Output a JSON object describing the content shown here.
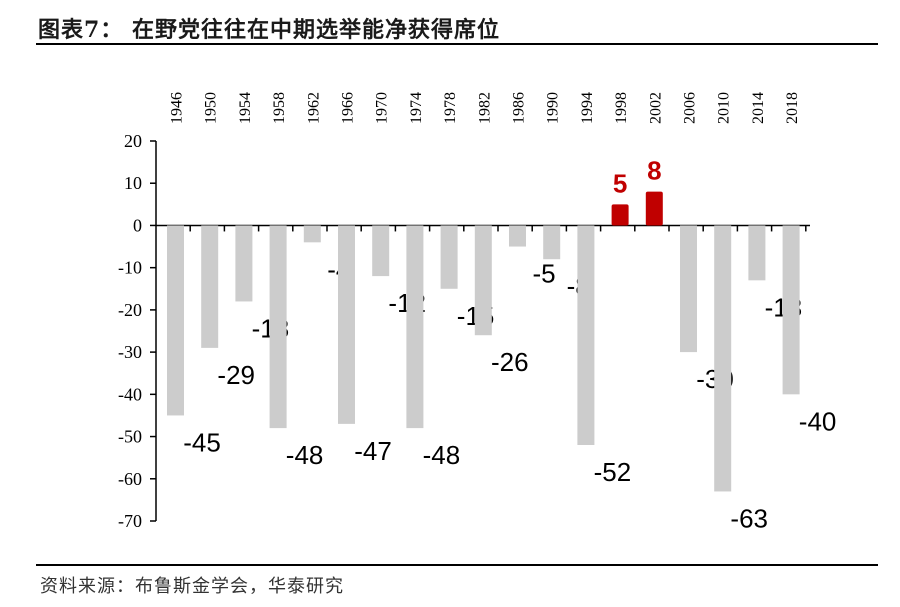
{
  "title": "图表7：  在野党往往在中期选举能净获得席位",
  "source": "资料来源：布鲁斯金学会，华泰研究",
  "chart_data": {
    "type": "bar",
    "categories": [
      "1946",
      "1950",
      "1954",
      "1958",
      "1962",
      "1966",
      "1970",
      "1974",
      "1978",
      "1982",
      "1986",
      "1990",
      "1994",
      "1998",
      "2002",
      "2006",
      "2010",
      "2014",
      "2018"
    ],
    "values": [
      -45,
      -29,
      -18,
      -48,
      -4,
      -47,
      -12,
      -48,
      -15,
      -26,
      -5,
      -8,
      -52,
      5,
      8,
      -30,
      -63,
      -13,
      -40
    ],
    "ylim": [
      -70,
      20
    ],
    "yticks": [
      20,
      10,
      0,
      -10,
      -20,
      -30,
      -40,
      -50,
      -60,
      -70
    ],
    "colors": {
      "negative": "#cccccc",
      "positive": "#c00000"
    },
    "data_labels": true,
    "grid": false,
    "legend": "none"
  }
}
